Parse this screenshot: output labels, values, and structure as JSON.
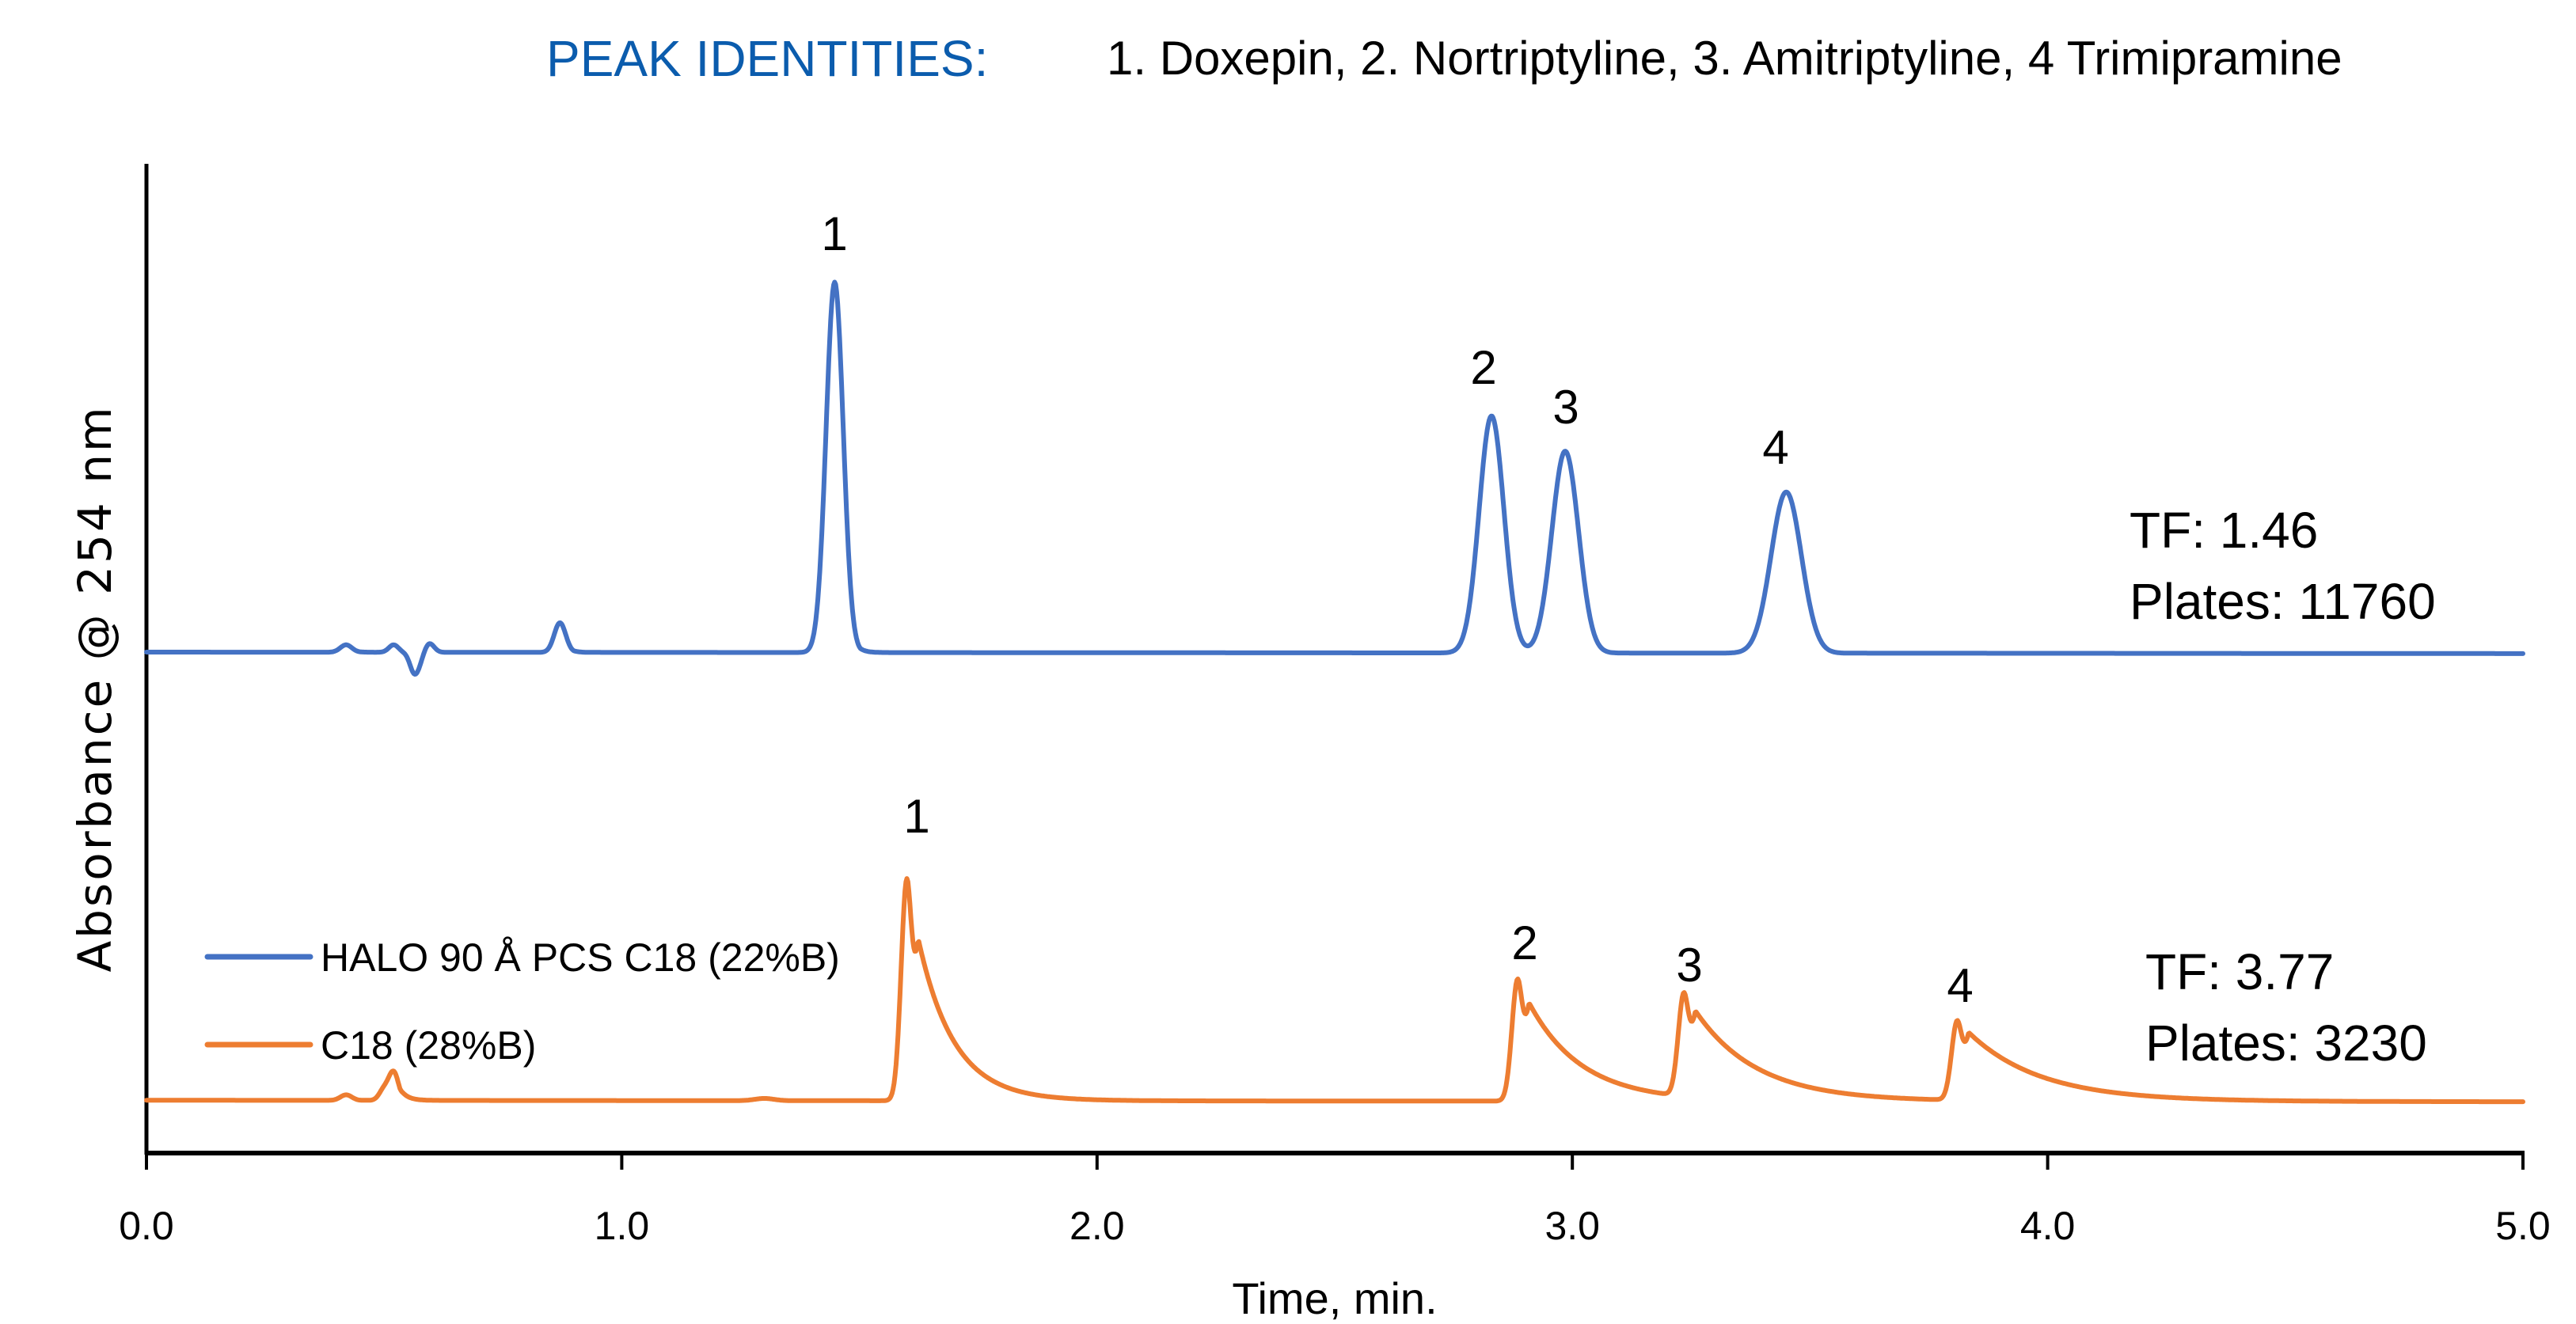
{
  "header": {
    "key_label": "PEAK IDENTITIES:",
    "identities_text": "1. Doxepin, 2. Nortriptyline, 3. Amitriptyline, 4 Trimipramine"
  },
  "colors": {
    "title_blue": "#0b5cad",
    "series_blue": "#4472c4",
    "series_orange": "#ed7d31",
    "axis": "#000000"
  },
  "chart_data": {
    "type": "line",
    "title": "PEAK IDENTITIES: 1. Doxepin, 2. Nortriptyline, 3. Amitriptyline, 4 Trimipramine",
    "xlabel": "Time, min.",
    "ylabel": "Absorbance @ 254 nm",
    "xlim": [
      0.0,
      5.0
    ],
    "x_ticks": [
      "0.0",
      "1.0",
      "2.0",
      "3.0",
      "4.0",
      "5.0"
    ],
    "x_tick_values": [
      0,
      1,
      2,
      3,
      4,
      5
    ],
    "y_ticks": [],
    "grid": false,
    "legend_position": "lower-left inside plot",
    "peak_identities": [
      {
        "number": "1",
        "name": "Doxepin"
      },
      {
        "number": "2",
        "name": "Nortriptyline"
      },
      {
        "number": "3",
        "name": "Amitriptyline"
      },
      {
        "number": "4",
        "name": "Trimipramine"
      }
    ],
    "series": [
      {
        "name": "HALO 90 Å PCS C18 (22%B)",
        "color": "#4472c4",
        "baseline_offset": 0.0,
        "annotation": {
          "tf": "TF: 1.46",
          "plates": "Plates: 11760"
        },
        "peaks": [
          {
            "label": "",
            "time": 0.42,
            "height": 0.02,
            "width": 0.012,
            "tail": 0.01
          },
          {
            "label": "",
            "time": 0.52,
            "height": 0.02,
            "width": 0.01,
            "tail": 0.01
          },
          {
            "label": "",
            "time": 0.565,
            "height": -0.06,
            "width": 0.01,
            "tail": 0.0
          },
          {
            "label": "",
            "time": 0.595,
            "height": 0.025,
            "width": 0.01,
            "tail": 0.005
          },
          {
            "label": "",
            "time": 0.87,
            "height": 0.08,
            "width": 0.012,
            "tail": 0.01
          },
          {
            "label": "1",
            "time": 1.448,
            "height": 1.0,
            "width": 0.018,
            "tail": 0.012
          },
          {
            "label": "2",
            "time": 2.83,
            "height": 0.64,
            "width": 0.026,
            "tail": 0.012
          },
          {
            "label": "3",
            "time": 2.985,
            "height": 0.545,
            "width": 0.028,
            "tail": 0.014
          },
          {
            "label": "4",
            "time": 3.45,
            "height": 0.435,
            "width": 0.032,
            "tail": 0.016
          }
        ]
      },
      {
        "name": "C18 (28%B)",
        "color": "#ed7d31",
        "baseline_offset": -1.21,
        "annotation": {
          "tf": "TF: 3.77",
          "plates": "Plates: 3230"
        },
        "peaks": [
          {
            "label": "",
            "time": 0.42,
            "height": 0.015,
            "width": 0.012,
            "tail": 0.01
          },
          {
            "label": "",
            "time": 0.5,
            "height": 0.03,
            "width": 0.01,
            "tail": 0.01
          },
          {
            "label": "",
            "time": 0.52,
            "height": 0.075,
            "width": 0.01,
            "tail": 0.015
          },
          {
            "label": "",
            "time": 1.3,
            "height": 0.006,
            "width": 0.02,
            "tail": 0.01
          },
          {
            "label": "1",
            "time": 1.6,
            "height": 0.6,
            "width": 0.012,
            "tail": 0.075
          },
          {
            "label": "2",
            "time": 2.885,
            "height": 0.33,
            "width": 0.012,
            "tail": 0.11
          },
          {
            "label": "3",
            "time": 3.235,
            "height": 0.28,
            "width": 0.012,
            "tail": 0.13
          },
          {
            "label": "4",
            "time": 3.81,
            "height": 0.215,
            "width": 0.012,
            "tail": 0.15
          }
        ]
      }
    ]
  },
  "legend": {
    "items": [
      {
        "label": "HALO 90 Å PCS C18 (22%B)",
        "color": "#4472c4"
      },
      {
        "label": "C18 (28%B)",
        "color": "#ed7d31"
      }
    ]
  },
  "axes": {
    "x_title": "Time, min.",
    "y_title": "Absorbance @ 254 nm",
    "x_ticks": [
      "0.0",
      "1.0",
      "2.0",
      "3.0",
      "4.0",
      "5.0"
    ]
  },
  "annotations": {
    "blue": {
      "tf": "TF: 1.46",
      "plates": "Plates: 11760"
    },
    "orange": {
      "tf": "TF: 3.77",
      "plates": "Plates: 3230"
    }
  },
  "peak_labels": {
    "blue": [
      "1",
      "2",
      "3",
      "4"
    ],
    "orange": [
      "1",
      "2",
      "3",
      "4"
    ]
  }
}
